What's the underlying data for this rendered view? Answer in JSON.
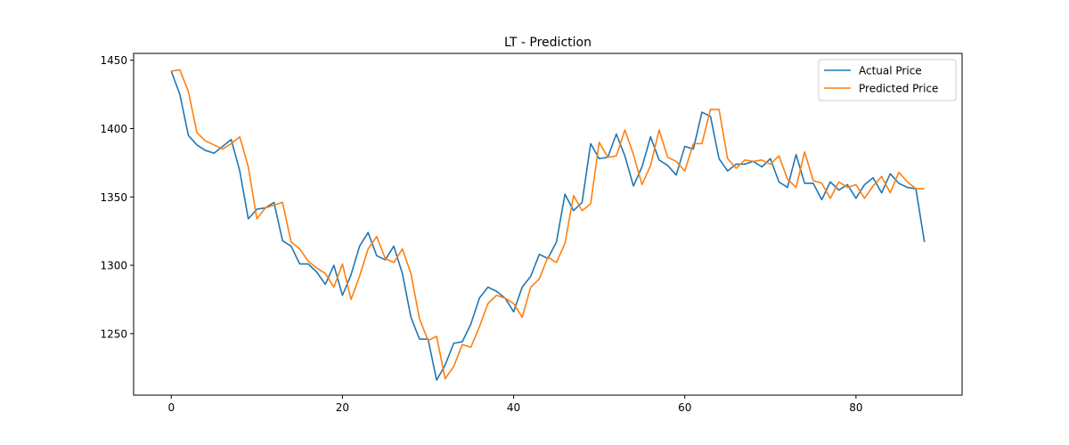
{
  "chart_data": {
    "type": "line",
    "title": "LT - Prediction",
    "xlabel": "",
    "ylabel": "",
    "xlim": [
      -4.4,
      92.4
    ],
    "ylim": [
      1205,
      1455
    ],
    "x_ticks": [
      0,
      20,
      40,
      60,
      80
    ],
    "y_ticks": [
      1250,
      1300,
      1350,
      1400,
      1450
    ],
    "grid": false,
    "legend_position": "top-right",
    "series": [
      {
        "name": "Actual Price",
        "color": "#1f77b4",
        "x_start": 0,
        "values": [
          1442,
          1425,
          1395,
          1388,
          1384,
          1382,
          1387,
          1392,
          1369,
          1334,
          1341,
          1342,
          1346,
          1318,
          1314,
          1301,
          1301,
          1295,
          1286,
          1300,
          1278,
          1293,
          1314,
          1324,
          1307,
          1304,
          1314,
          1294,
          1262,
          1246,
          1246,
          1216,
          1227,
          1243,
          1244,
          1257,
          1276,
          1284,
          1281,
          1276,
          1266,
          1284,
          1292,
          1308,
          1305,
          1317,
          1352,
          1340,
          1346,
          1389,
          1378,
          1379,
          1396,
          1380,
          1358,
          1372,
          1394,
          1377,
          1373,
          1366,
          1387,
          1385,
          1412,
          1409,
          1378,
          1369,
          1374,
          1374,
          1376,
          1372,
          1378,
          1361,
          1357,
          1381,
          1360,
          1360,
          1348,
          1361,
          1355,
          1359,
          1349,
          1359,
          1364,
          1353,
          1367,
          1360,
          1357,
          1356,
          1317
        ]
      },
      {
        "name": "Predicted Price",
        "color": "#ff7f0e",
        "x_start": 0,
        "values": [
          1442,
          1443,
          1427,
          1397,
          1391,
          1388,
          1385,
          1389,
          1394,
          1372,
          1334,
          1342,
          1344,
          1346,
          1317,
          1312,
          1303,
          1298,
          1294,
          1284,
          1301,
          1275,
          1292,
          1312,
          1321,
          1305,
          1302,
          1312,
          1294,
          1261,
          1245,
          1248,
          1217,
          1226,
          1242,
          1240,
          1255,
          1272,
          1278,
          1276,
          1272,
          1262,
          1284,
          1290,
          1306,
          1302,
          1316,
          1351,
          1340,
          1345,
          1390,
          1379,
          1380,
          1399,
          1381,
          1359,
          1373,
          1399,
          1379,
          1376,
          1369,
          1389,
          1389,
          1414,
          1414,
          1378,
          1371,
          1377,
          1376,
          1377,
          1374,
          1380,
          1363,
          1357,
          1383,
          1362,
          1360,
          1349,
          1361,
          1357,
          1359,
          1349,
          1358,
          1365,
          1353,
          1368,
          1361,
          1356,
          1356
        ]
      }
    ]
  }
}
